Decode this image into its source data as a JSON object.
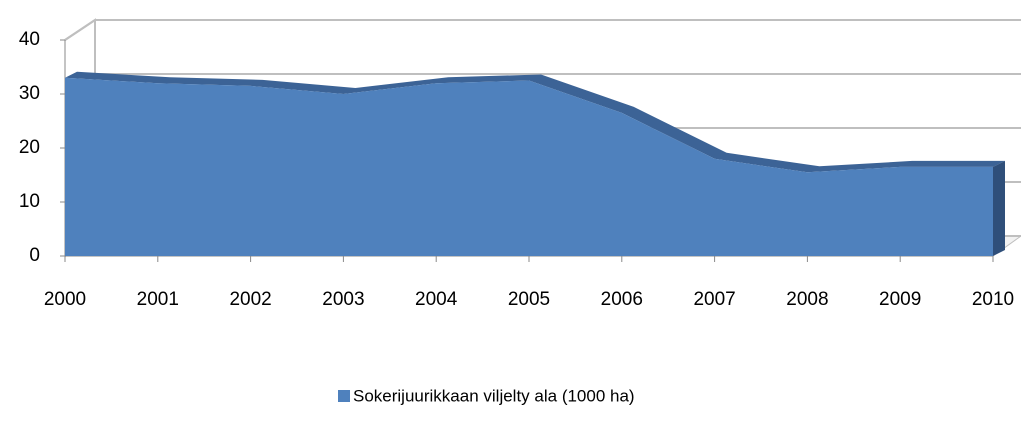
{
  "chart_data": {
    "type": "area",
    "categories": [
      "2000",
      "2001",
      "2002",
      "2003",
      "2004",
      "2005",
      "2006",
      "2007",
      "2008",
      "2009",
      "2010"
    ],
    "series": [
      {
        "name": "Sokerijuurikkaan viljelty ala (1000 ha)",
        "color": "#4f81bd",
        "values": [
          33,
          32,
          31.5,
          30,
          32,
          32.5,
          26.5,
          18,
          15.5,
          16.5,
          16.5
        ]
      }
    ],
    "ylim": [
      0,
      40
    ],
    "yticks": [
      0,
      10,
      20,
      30,
      40
    ],
    "grid": true,
    "legend": "bottom"
  }
}
